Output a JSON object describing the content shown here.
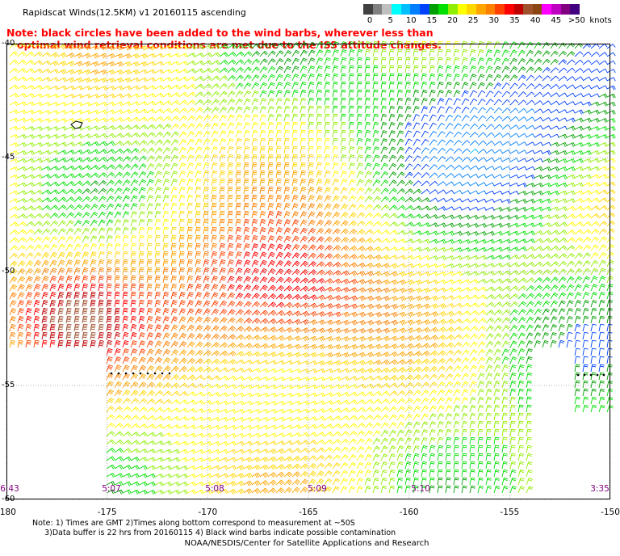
{
  "title": "Rapidscat Winds(12.5KM) v1 20160115 ascending",
  "note": "Note: black circles have been added to the wind barbs, wherever less than\n   optimal wind retrieval conditions are met due to the ISS attitude changes.",
  "colorbar": {
    "colors": [
      "#404040",
      "#808080",
      "#bfbfbf",
      "#00ffff",
      "#00bfff",
      "#0080ff",
      "#0040ff",
      "#00a000",
      "#00e000",
      "#90ee00",
      "#ffff00",
      "#ffd700",
      "#ffa500",
      "#ff8000",
      "#ff4000",
      "#ff0000",
      "#c00000",
      "#a0522d",
      "#8b4513",
      "#ff00ff",
      "#c000c0",
      "#800080",
      "#400080"
    ],
    "labels": [
      "0",
      "5",
      "10",
      "15",
      "20",
      "25",
      "30",
      "35",
      "40",
      "45",
      ">50"
    ],
    "unit": "knots"
  },
  "map": {
    "lon_min": -180,
    "lon_max": -150,
    "lat_min": -60,
    "lat_max": -40,
    "x_ticks": [
      "-180",
      "-175",
      "-170",
      "-165",
      "-160",
      "-155",
      "-150"
    ],
    "y_ticks": [
      "-40",
      "-45",
      "-50",
      "-55",
      "-60"
    ],
    "time_labels": [
      "6:43",
      "5:07",
      "5:08",
      "5:09",
      "5:10",
      "3:35"
    ]
  },
  "footer": {
    "notes": "Note: 1) Times are GMT 2)Times along bottom correspond to measurement at ~50S\n     3)Data buffer is 22 hrs from 20160115 4) Black wind barbs indicate possible contamination",
    "credit": "NOAA/NESDIS/Center for Satellite Applications and Research"
  }
}
